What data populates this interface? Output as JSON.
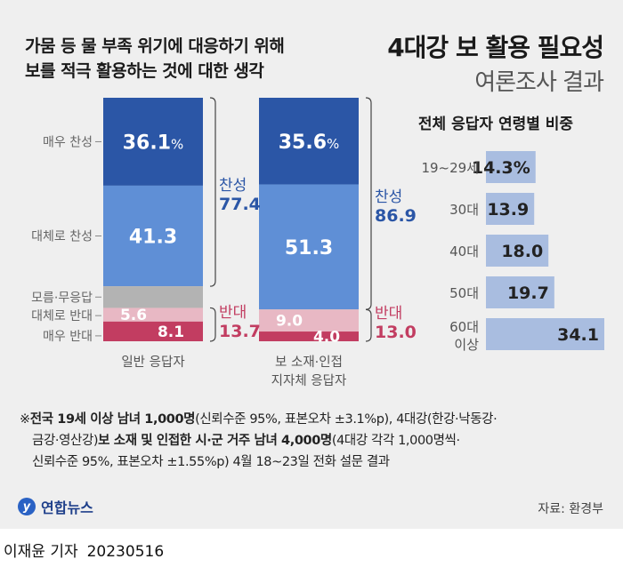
{
  "subtitle": [
    "가뭄 등 물 부족 위기에 대응하기 위해",
    "보를 적극 활용하는 것에 대한 생각"
  ],
  "title": "4대강 보 활용 필요성",
  "title_sub": "여론조사 결과",
  "colors": {
    "very_agree": "#2b56a6",
    "somewhat_agree": "#5f8fd6",
    "unknown": "#b3b3b3",
    "somewhat_disagree": "#e8b8c4",
    "very_disagree": "#c23d61",
    "agree_text": "#2b56a6",
    "disagree_text": "#c23d61",
    "age_bar": "#a9bde0"
  },
  "chart_data": [
    {
      "type": "bar",
      "stacked": true,
      "orientation": "vertical",
      "categories": [
        "일반 응답자",
        "보 소재·인접\n지자체 응답자"
      ],
      "category_lines": [
        [
          "일반 응답자"
        ],
        [
          "보 소재·인접",
          "지자체 응답자"
        ]
      ],
      "series": [
        {
          "name": "매우 찬성",
          "values": [
            36.1,
            35.6
          ],
          "labels": [
            "36.1%",
            "35.6%"
          ],
          "color": "#2b56a6"
        },
        {
          "name": "대체로 찬성",
          "values": [
            41.3,
            51.3
          ],
          "labels": [
            "41.3",
            "51.3"
          ],
          "color": "#5f8fd6"
        },
        {
          "name": "모름·무응답",
          "values": [
            8.9,
            0.1
          ],
          "labels": [
            "",
            ""
          ],
          "color": "#b3b3b3"
        },
        {
          "name": "대체로 반대",
          "values": [
            5.6,
            9.0
          ],
          "labels": [
            "5.6",
            "9.0"
          ],
          "color": "#e8b8c4"
        },
        {
          "name": "매우 반대",
          "values": [
            8.1,
            4.0
          ],
          "labels": [
            "8.1",
            "4.0"
          ],
          "color": "#c23d61"
        }
      ],
      "groups": [
        {
          "label": "찬성",
          "values": [
            77.4,
            86.9
          ],
          "labels": [
            "77.4",
            "86.9"
          ]
        },
        {
          "label": "반대",
          "values": [
            13.7,
            13.0
          ],
          "labels": [
            "13.7",
            "13.0"
          ]
        }
      ]
    },
    {
      "type": "bar",
      "orientation": "horizontal",
      "title": "전체 응답자 연령별 비중",
      "categories": [
        "19~29세",
        "30대",
        "40대",
        "50대",
        "60대\n이상"
      ],
      "category_lines": [
        [
          "19~29세"
        ],
        [
          "30대"
        ],
        [
          "40대"
        ],
        [
          "50대"
        ],
        [
          "60대",
          "이상"
        ]
      ],
      "values": [
        14.3,
        13.9,
        18.0,
        19.7,
        34.1
      ],
      "labels": [
        "14.3%",
        "13.9",
        "18.0",
        "19.7",
        "34.1"
      ],
      "xlim": [
        0,
        34.1
      ]
    }
  ],
  "note": {
    "mark": "※",
    "lines": [
      [
        {
          "b": true,
          "t": "전국 19세 이상 남녀 1,000명"
        },
        {
          "b": false,
          "t": "(신뢰수준 95%, 표본오차 ±3.1%p), 4대강(한강·낙동강·"
        }
      ],
      [
        {
          "b": false,
          "t": "금강·영산강)"
        },
        {
          "b": true,
          "t": "보 소재 및 인접한 시·군 거주 남녀 4,000명"
        },
        {
          "b": false,
          "t": "(4대강 각각 1,000명씩·"
        }
      ],
      [
        {
          "b": false,
          "t": "신뢰수준 95%, 표본오차 ±1.55%p) 4월 18~23일 전화 설문 결과"
        }
      ]
    ]
  },
  "logo_text": "연합뉴스",
  "source": "자료: 환경부",
  "byline": {
    "author": "이재윤 기자",
    "date": "20230516"
  }
}
